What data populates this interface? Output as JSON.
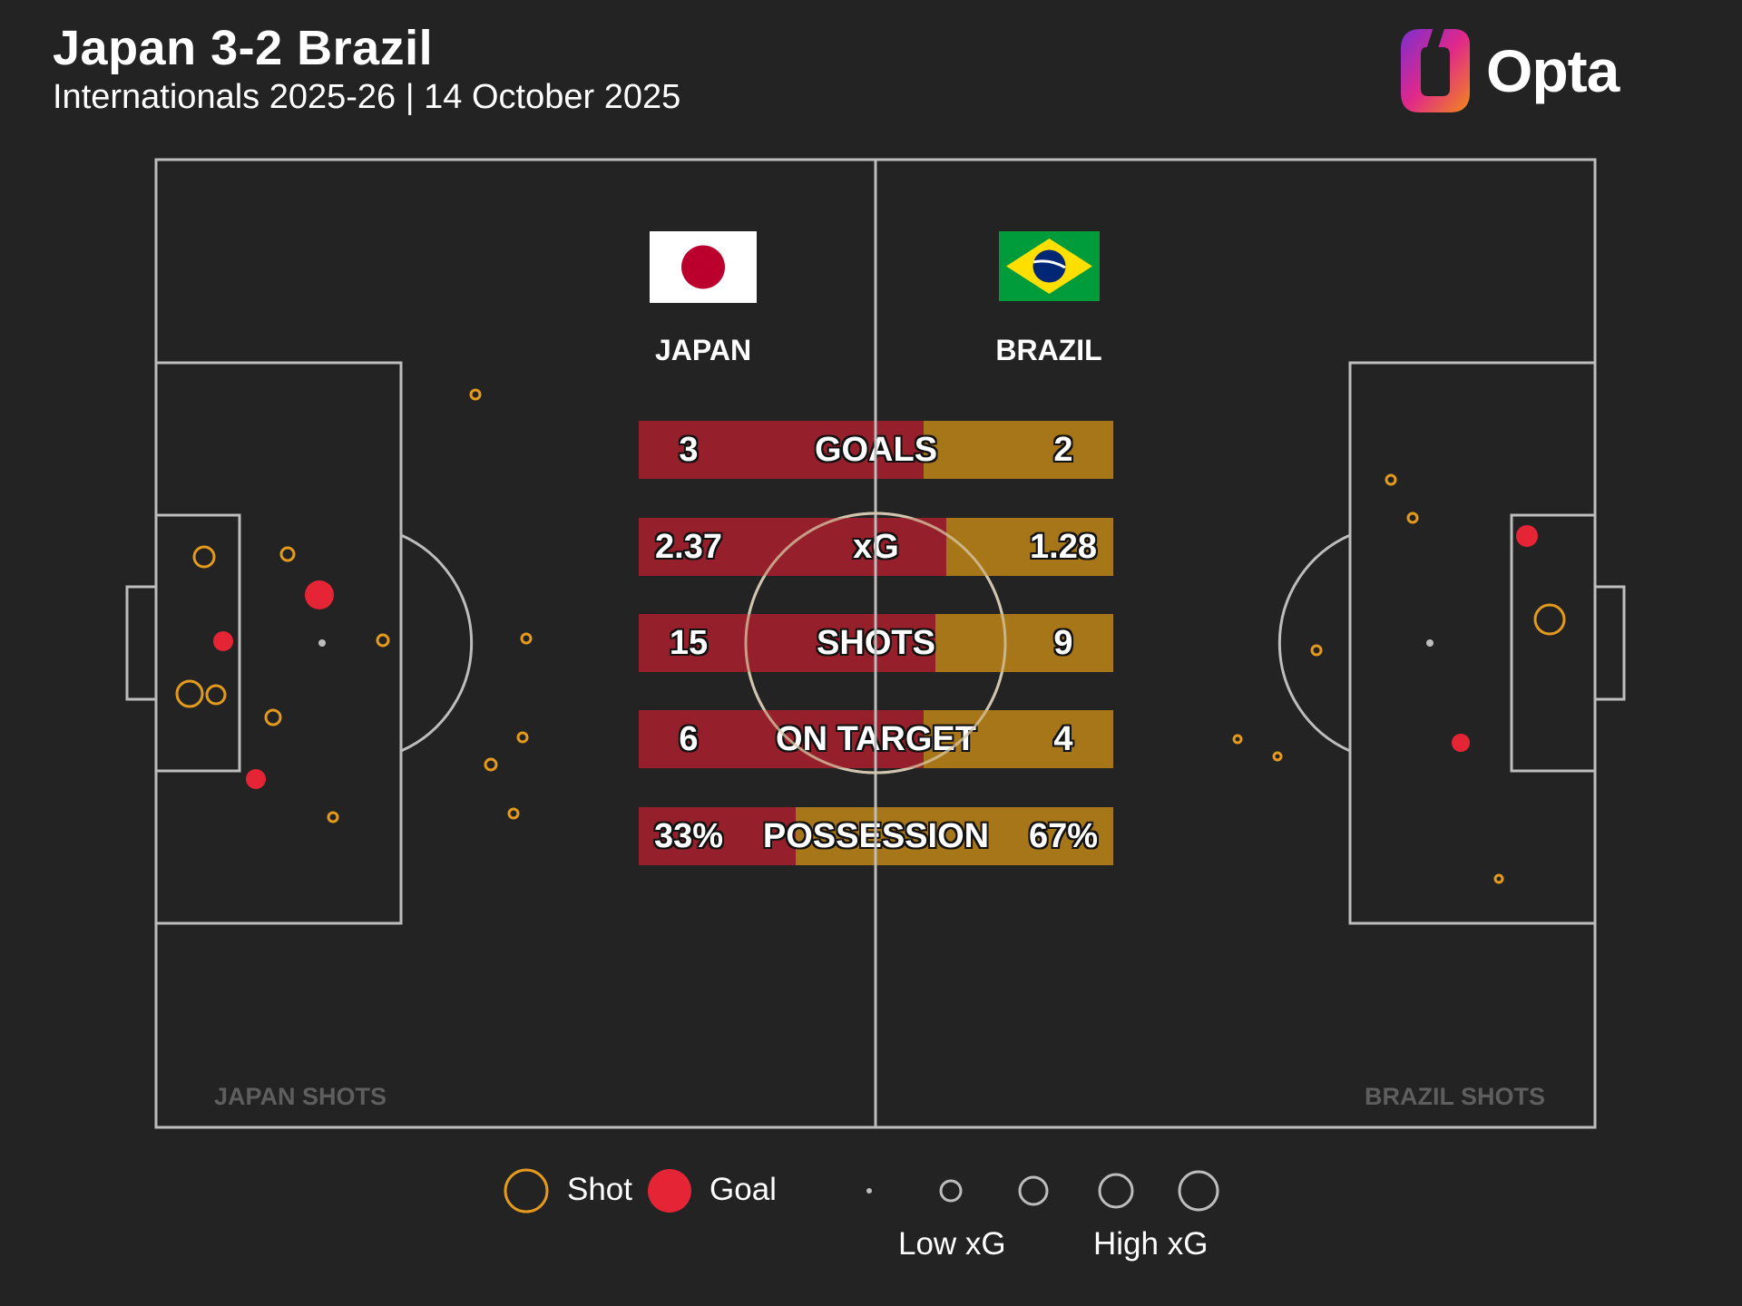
{
  "header": {
    "title": "Japan 3-2 Brazil",
    "subtitle": "Internationals 2025-26 | 14 October 2025",
    "brand": "Opta"
  },
  "teams": {
    "home": {
      "name": "JAPAN",
      "flag": "japan-flag"
    },
    "away": {
      "name": "BRAZIL",
      "flag": "brazil-flag"
    }
  },
  "colors": {
    "background": "#232323",
    "pitch_lines": "#bdbdbd",
    "home_bar": "#95202b",
    "away_bar": "#a77619",
    "shot": "#e39a1d",
    "goal": "#e52535"
  },
  "stats": [
    {
      "label": "GOALS",
      "home": "3",
      "away": "2",
      "home_share": 0.6
    },
    {
      "label": "xG",
      "home": "2.37",
      "away": "1.28",
      "home_share": 0.649
    },
    {
      "label": "SHOTS",
      "home": "15",
      "away": "9",
      "home_share": 0.625
    },
    {
      "label": "ON TARGET",
      "home": "6",
      "away": "4",
      "home_share": 0.6
    },
    {
      "label": "POSSESSION",
      "home": "33%",
      "away": "67%",
      "home_share": 0.33
    }
  ],
  "shot_maps": {
    "home_label": "JAPAN SHOTS",
    "away_label": "BRAZIL SHOTS"
  },
  "legend": {
    "shot": "Shot",
    "goal": "Goal",
    "low_xg": "Low xG",
    "high_xg": "High xG"
  }
}
